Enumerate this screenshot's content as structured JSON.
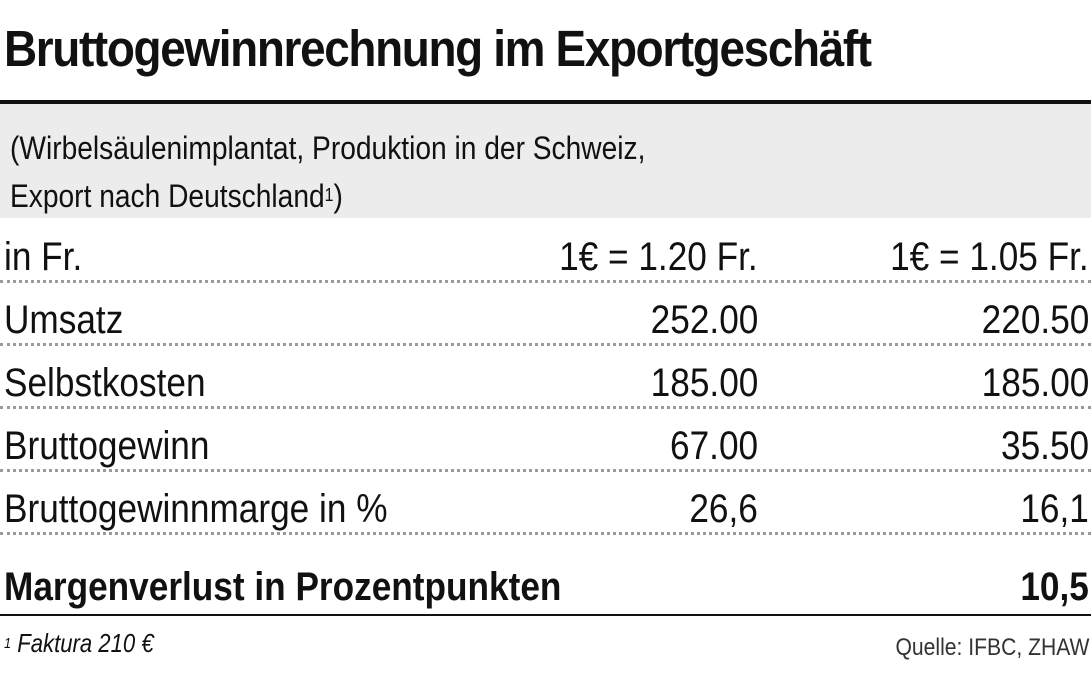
{
  "title": "Bruttogewinnrechnung im Exportgeschäft",
  "subtitle": {
    "line1": "(Wirbelsäulenimplantat, Produktion in der Schweiz,",
    "line2": "Export nach Deutschland",
    "footnote_marker": "1",
    "closing": ")"
  },
  "table": {
    "header": [
      "in Fr.",
      "1€ = 1.20 Fr.",
      "1€ = 1.05 Fr."
    ],
    "rows": [
      [
        "Umsatz",
        "252.00",
        "220.50"
      ],
      [
        "Selbstkosten",
        "185.00",
        "185.00"
      ],
      [
        "Bruttogewinn",
        "67.00",
        "35.50"
      ],
      [
        "Bruttogewinnmarge in %",
        "26,6",
        "16,1"
      ]
    ]
  },
  "total": {
    "label": "Margenverlust in Prozentpunkten",
    "value": "10,5"
  },
  "footnote": {
    "marker": "1",
    "text": "Faktura 210 €"
  },
  "source": "Quelle: IFBC, ZHAW",
  "colors": {
    "text": "#111111",
    "subtitle_background": "#ececec",
    "dotted_rule": "#9a9a9a"
  }
}
